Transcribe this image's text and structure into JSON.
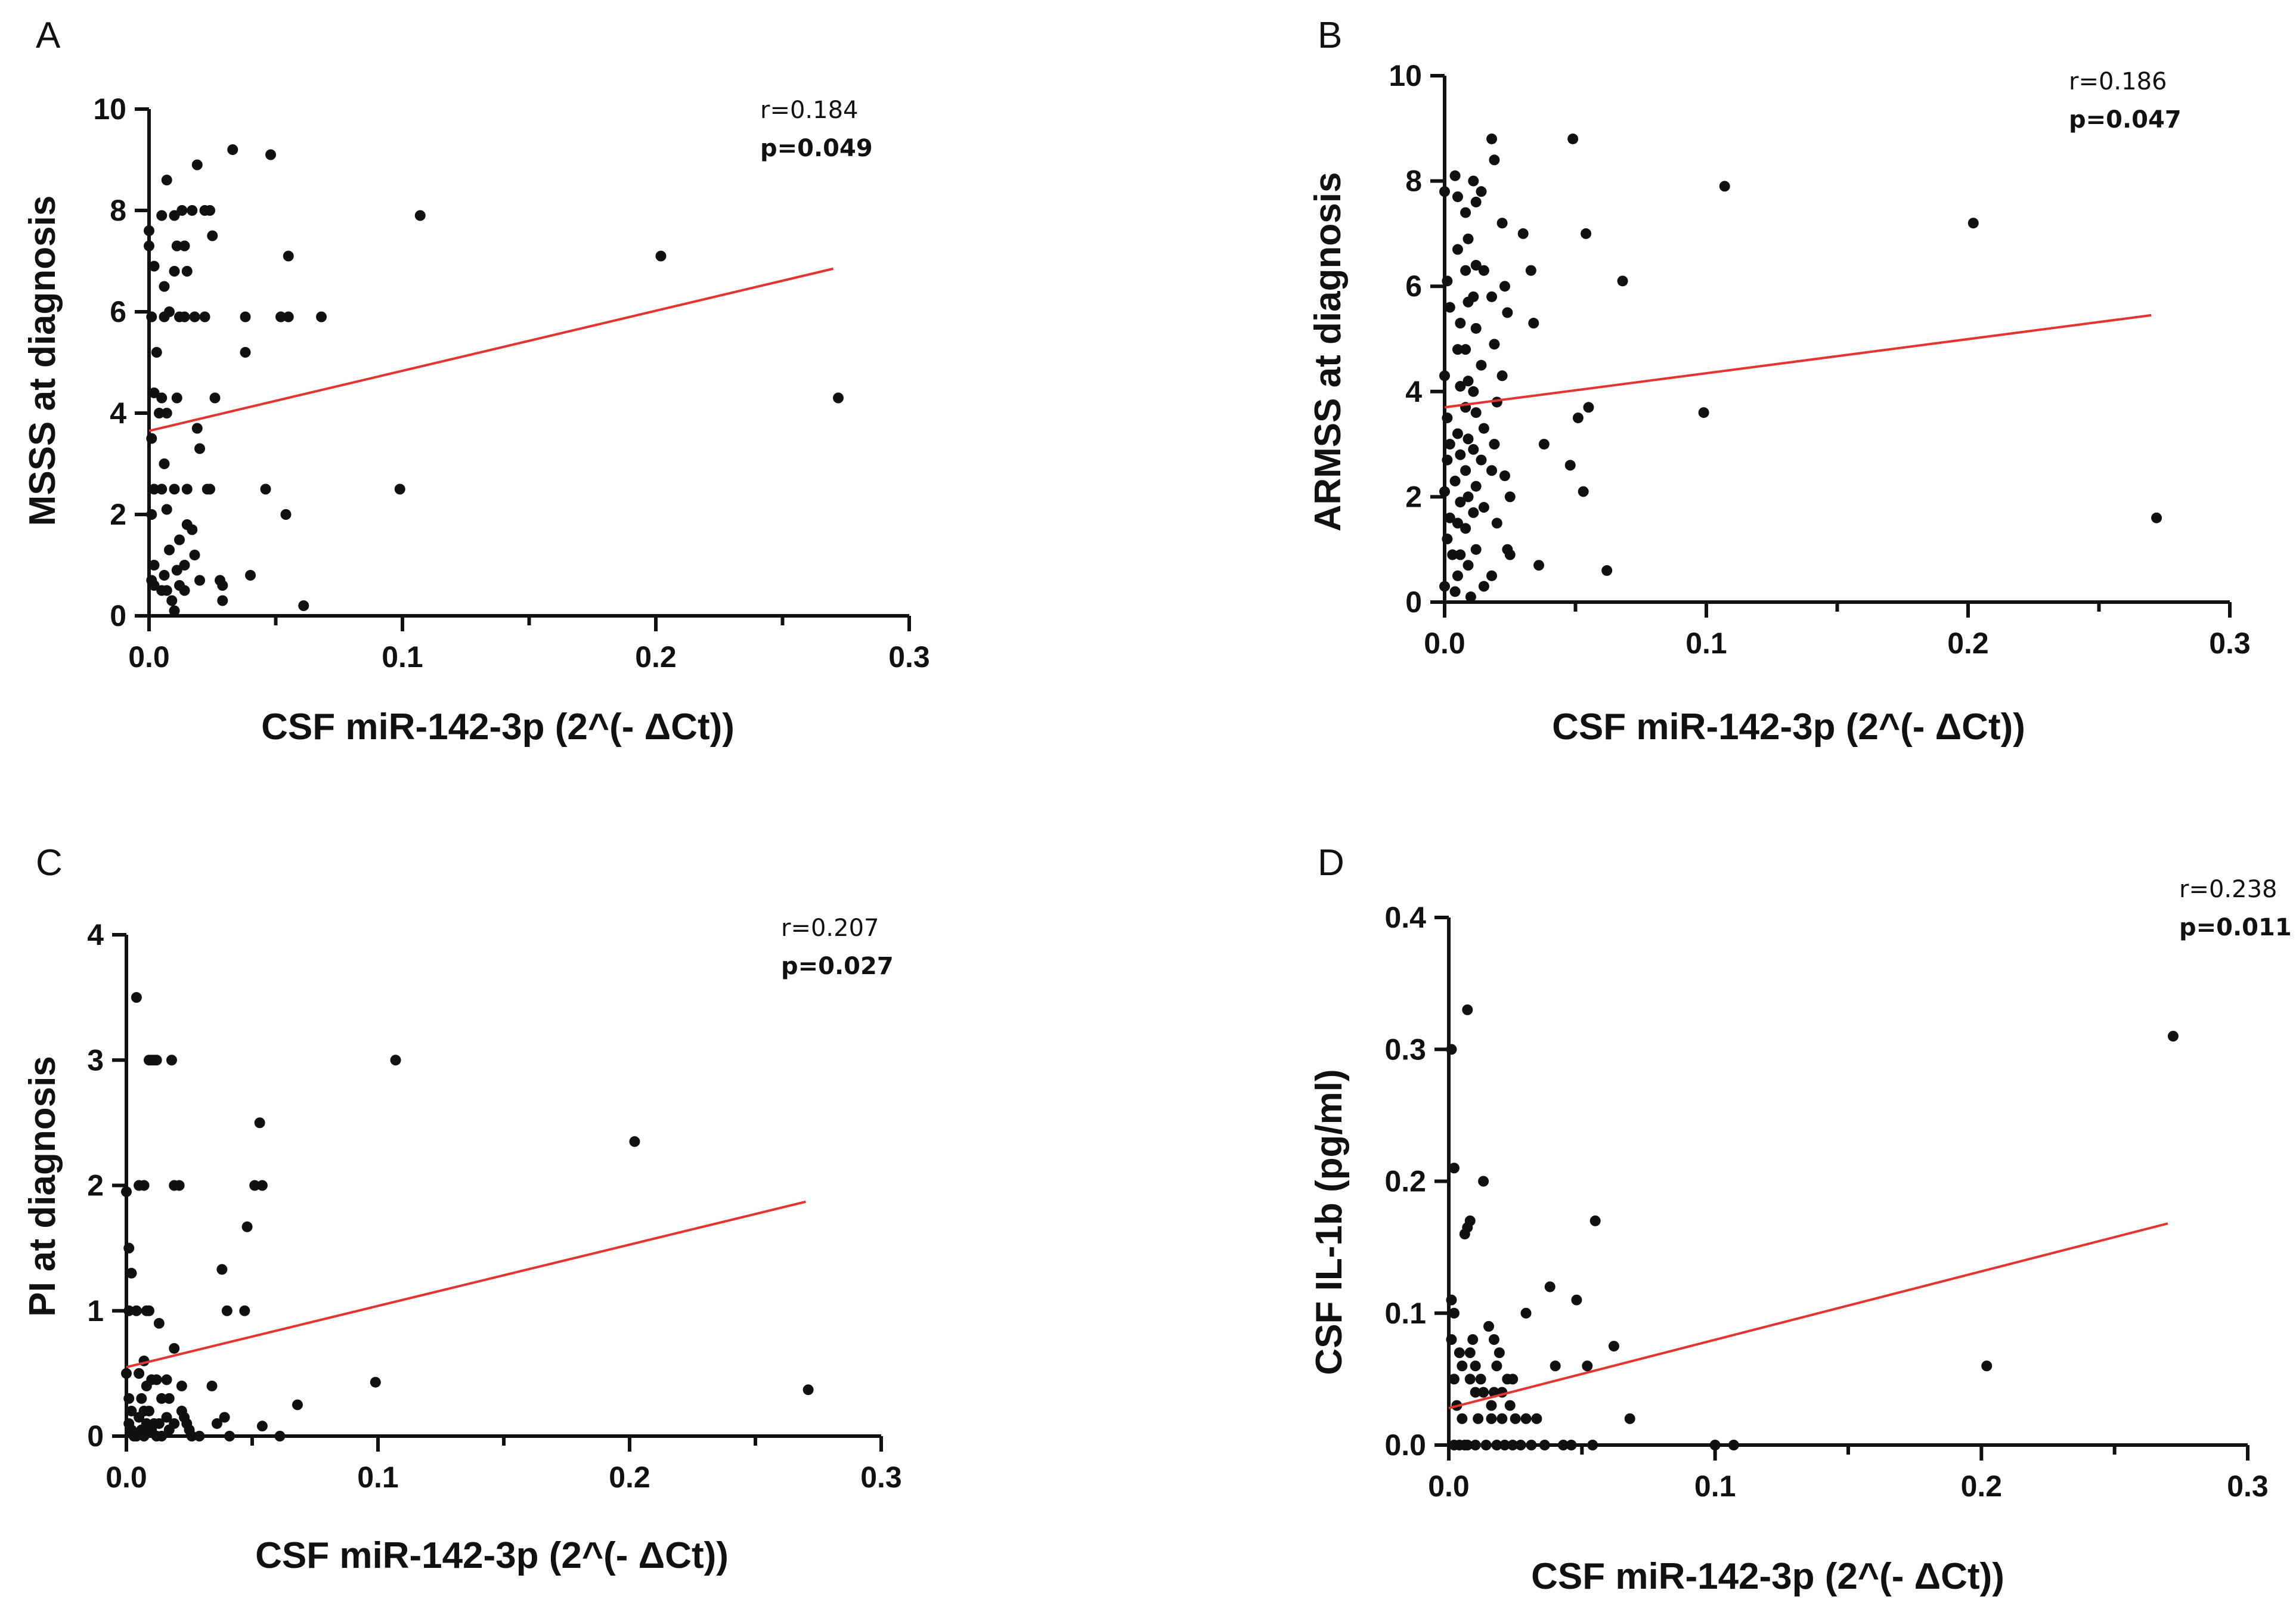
{
  "chart_data": [
    {
      "panel": "A",
      "type": "scatter",
      "xlabel": "CSF miR-142-3p (2^(- ΔCt))",
      "ylabel": "MSSS at diagnosis",
      "xlim": [
        0,
        0.3
      ],
      "ylim": [
        0,
        10
      ],
      "x_ticks": [
        0.0,
        0.1,
        0.2,
        0.3
      ],
      "x_tick_labels": [
        "0.0",
        "0.1",
        "0.2",
        "0.3"
      ],
      "y_ticks": [
        0,
        2,
        4,
        6,
        8,
        10
      ],
      "y_tick_labels": [
        "0",
        "2",
        "4",
        "6",
        "8",
        "10"
      ],
      "stats": {
        "r": "r=0.184",
        "p": "p=0.049"
      },
      "fit_line": {
        "x": [
          0.0,
          0.27
        ],
        "y": [
          3.65,
          6.85
        ]
      },
      "points": [
        [
          0.0,
          7.6
        ],
        [
          0.0,
          7.3
        ],
        [
          0.002,
          6.9
        ],
        [
          0.001,
          5.9
        ],
        [
          0.003,
          5.2
        ],
        [
          0.002,
          4.4
        ],
        [
          0.004,
          4.0
        ],
        [
          0.001,
          3.5
        ],
        [
          0.002,
          2.5
        ],
        [
          0.001,
          2.0
        ],
        [
          0.002,
          1.0
        ],
        [
          0.001,
          0.7
        ],
        [
          0.002,
          0.6
        ],
        [
          0.005,
          0.5
        ],
        [
          0.007,
          8.6
        ],
        [
          0.005,
          7.9
        ],
        [
          0.006,
          6.5
        ],
        [
          0.008,
          6.0
        ],
        [
          0.006,
          5.9
        ],
        [
          0.005,
          4.3
        ],
        [
          0.007,
          4.0
        ],
        [
          0.006,
          3.0
        ],
        [
          0.005,
          2.5
        ],
        [
          0.007,
          2.1
        ],
        [
          0.008,
          1.3
        ],
        [
          0.006,
          0.8
        ],
        [
          0.007,
          0.5
        ],
        [
          0.009,
          0.3
        ],
        [
          0.01,
          7.9
        ],
        [
          0.011,
          7.3
        ],
        [
          0.01,
          6.8
        ],
        [
          0.012,
          5.9
        ],
        [
          0.011,
          4.3
        ],
        [
          0.01,
          2.5
        ],
        [
          0.012,
          1.5
        ],
        [
          0.011,
          0.9
        ],
        [
          0.012,
          0.6
        ],
        [
          0.01,
          0.1
        ],
        [
          0.013,
          8.0
        ],
        [
          0.014,
          7.3
        ],
        [
          0.015,
          6.8
        ],
        [
          0.014,
          5.9
        ],
        [
          0.015,
          2.5
        ],
        [
          0.015,
          1.8
        ],
        [
          0.014,
          1.0
        ],
        [
          0.014,
          0.5
        ],
        [
          0.017,
          8.0
        ],
        [
          0.018,
          5.9
        ],
        [
          0.017,
          1.7
        ],
        [
          0.018,
          1.2
        ],
        [
          0.019,
          8.9
        ],
        [
          0.019,
          3.7
        ],
        [
          0.02,
          3.3
        ],
        [
          0.02,
          0.7
        ],
        [
          0.022,
          5.9
        ],
        [
          0.022,
          8.0
        ],
        [
          0.023,
          2.5
        ],
        [
          0.024,
          8.0
        ],
        [
          0.025,
          7.5
        ],
        [
          0.026,
          4.3
        ],
        [
          0.024,
          2.5
        ],
        [
          0.028,
          0.7
        ],
        [
          0.029,
          0.3
        ],
        [
          0.029,
          0.6
        ],
        [
          0.033,
          9.2
        ],
        [
          0.038,
          5.9
        ],
        [
          0.038,
          5.2
        ],
        [
          0.04,
          0.8
        ],
        [
          0.046,
          2.5
        ],
        [
          0.048,
          9.1
        ],
        [
          0.052,
          5.9
        ],
        [
          0.054,
          2.0
        ],
        [
          0.055,
          5.9
        ],
        [
          0.055,
          7.1
        ],
        [
          0.061,
          0.2
        ],
        [
          0.068,
          5.9
        ],
        [
          0.099,
          2.5
        ],
        [
          0.107,
          7.9
        ],
        [
          0.202,
          7.1
        ],
        [
          0.272,
          4.3
        ]
      ]
    },
    {
      "panel": "B",
      "type": "scatter",
      "xlabel": "CSF miR-142-3p (2^(- ΔCt))",
      "ylabel": "ARMSS at diagnosis",
      "xlim": [
        0,
        0.3
      ],
      "ylim": [
        0,
        10
      ],
      "x_ticks": [
        0.0,
        0.1,
        0.2,
        0.3
      ],
      "x_tick_labels": [
        "0.0",
        "0.1",
        "0.2",
        "0.3"
      ],
      "y_ticks": [
        0,
        2,
        4,
        6,
        8,
        10
      ],
      "y_tick_labels": [
        "0",
        "2",
        "4",
        "6",
        "8",
        "10"
      ],
      "stats": {
        "r": "r=0.186",
        "p": "p=0.047"
      },
      "fit_line": {
        "x": [
          0.0,
          0.27
        ],
        "y": [
          3.7,
          5.45
        ]
      },
      "points": [
        [
          0.0,
          7.8
        ],
        [
          0.001,
          6.1
        ],
        [
          0.002,
          5.6
        ],
        [
          0.0,
          4.3
        ],
        [
          0.001,
          3.5
        ],
        [
          0.002,
          3.0
        ],
        [
          0.001,
          2.7
        ],
        [
          0.0,
          2.1
        ],
        [
          0.002,
          1.6
        ],
        [
          0.001,
          1.2
        ],
        [
          0.003,
          0.9
        ],
        [
          0.0,
          0.3
        ],
        [
          0.004,
          0.2
        ],
        [
          0.004,
          8.1
        ],
        [
          0.005,
          7.7
        ],
        [
          0.005,
          6.7
        ],
        [
          0.006,
          5.3
        ],
        [
          0.005,
          4.8
        ],
        [
          0.006,
          4.1
        ],
        [
          0.005,
          3.2
        ],
        [
          0.006,
          2.8
        ],
        [
          0.004,
          2.3
        ],
        [
          0.006,
          1.9
        ],
        [
          0.005,
          1.5
        ],
        [
          0.006,
          0.9
        ],
        [
          0.005,
          0.5
        ],
        [
          0.008,
          7.4
        ],
        [
          0.009,
          6.9
        ],
        [
          0.008,
          6.3
        ],
        [
          0.009,
          5.7
        ],
        [
          0.008,
          4.8
        ],
        [
          0.009,
          4.2
        ],
        [
          0.008,
          3.7
        ],
        [
          0.009,
          3.1
        ],
        [
          0.008,
          2.5
        ],
        [
          0.009,
          2.0
        ],
        [
          0.008,
          1.4
        ],
        [
          0.009,
          0.7
        ],
        [
          0.01,
          0.1
        ],
        [
          0.011,
          8.0
        ],
        [
          0.012,
          7.6
        ],
        [
          0.012,
          6.4
        ],
        [
          0.011,
          5.8
        ],
        [
          0.012,
          5.2
        ],
        [
          0.011,
          4.0
        ],
        [
          0.012,
          3.6
        ],
        [
          0.011,
          2.9
        ],
        [
          0.012,
          2.2
        ],
        [
          0.011,
          1.7
        ],
        [
          0.012,
          1.0
        ],
        [
          0.014,
          7.8
        ],
        [
          0.015,
          6.3
        ],
        [
          0.014,
          4.5
        ],
        [
          0.015,
          3.3
        ],
        [
          0.014,
          2.7
        ],
        [
          0.015,
          1.8
        ],
        [
          0.015,
          0.3
        ],
        [
          0.018,
          8.8
        ],
        [
          0.019,
          8.4
        ],
        [
          0.018,
          5.8
        ],
        [
          0.019,
          4.9
        ],
        [
          0.02,
          3.8
        ],
        [
          0.019,
          3.0
        ],
        [
          0.018,
          2.5
        ],
        [
          0.02,
          1.5
        ],
        [
          0.018,
          0.5
        ],
        [
          0.022,
          7.2
        ],
        [
          0.023,
          6.0
        ],
        [
          0.024,
          5.5
        ],
        [
          0.022,
          4.3
        ],
        [
          0.023,
          2.4
        ],
        [
          0.024,
          1.0
        ],
        [
          0.025,
          2.0
        ],
        [
          0.025,
          0.9
        ],
        [
          0.03,
          7.0
        ],
        [
          0.033,
          6.3
        ],
        [
          0.034,
          5.3
        ],
        [
          0.036,
          0.7
        ],
        [
          0.038,
          3.0
        ],
        [
          0.049,
          8.8
        ],
        [
          0.048,
          2.6
        ],
        [
          0.051,
          3.5
        ],
        [
          0.053,
          2.1
        ],
        [
          0.054,
          7.0
        ],
        [
          0.055,
          3.7
        ],
        [
          0.062,
          0.6
        ],
        [
          0.068,
          6.1
        ],
        [
          0.099,
          3.6
        ],
        [
          0.107,
          7.9
        ],
        [
          0.202,
          7.2
        ],
        [
          0.272,
          1.6
        ]
      ]
    },
    {
      "panel": "C",
      "type": "scatter",
      "xlabel": "CSF miR-142-3p (2^(- ΔCt))",
      "ylabel": "PI at diagnosis",
      "xlim": [
        0,
        0.3
      ],
      "ylim": [
        0,
        4
      ],
      "x_ticks": [
        0.0,
        0.1,
        0.2,
        0.3
      ],
      "x_tick_labels": [
        "0.0",
        "0.1",
        "0.2",
        "0.3"
      ],
      "y_ticks": [
        0,
        1,
        2,
        3,
        4
      ],
      "y_tick_labels": [
        "0",
        "1",
        "2",
        "3",
        "4"
      ],
      "stats": {
        "r": "r=0.207",
        "p": "p=0.027"
      },
      "fit_line": {
        "x": [
          0.0,
          0.27
        ],
        "y": [
          0.55,
          1.87
        ]
      },
      "points": [
        [
          0.0,
          1.95
        ],
        [
          0.001,
          1.5
        ],
        [
          0.002,
          1.3
        ],
        [
          0.001,
          1.0
        ],
        [
          0.0,
          0.5
        ],
        [
          0.001,
          0.3
        ],
        [
          0.002,
          0.2
        ],
        [
          0.001,
          0.1
        ],
        [
          0.002,
          0.05
        ],
        [
          0.003,
          0.0
        ],
        [
          0.004,
          3.5
        ],
        [
          0.005,
          2.0
        ],
        [
          0.004,
          1.0
        ],
        [
          0.005,
          0.5
        ],
        [
          0.006,
          0.3
        ],
        [
          0.005,
          0.15
        ],
        [
          0.006,
          0.05
        ],
        [
          0.004,
          0.0
        ],
        [
          0.007,
          2.0
        ],
        [
          0.008,
          1.0
        ],
        [
          0.007,
          0.6
        ],
        [
          0.008,
          0.4
        ],
        [
          0.007,
          0.2
        ],
        [
          0.008,
          0.1
        ],
        [
          0.007,
          0.0
        ],
        [
          0.009,
          3.0
        ],
        [
          0.01,
          3.0
        ],
        [
          0.009,
          1.0
        ],
        [
          0.01,
          0.45
        ],
        [
          0.009,
          0.2
        ],
        [
          0.01,
          0.05
        ],
        [
          0.011,
          3.0
        ],
        [
          0.012,
          3.0
        ],
        [
          0.012,
          0.45
        ],
        [
          0.011,
          0.1
        ],
        [
          0.012,
          0.0
        ],
        [
          0.013,
          0.9
        ],
        [
          0.014,
          0.3
        ],
        [
          0.013,
          0.1
        ],
        [
          0.014,
          0.0
        ],
        [
          0.016,
          0.45
        ],
        [
          0.017,
          0.3
        ],
        [
          0.016,
          0.15
        ],
        [
          0.017,
          0.05
        ],
        [
          0.018,
          3.0
        ],
        [
          0.019,
          2.0
        ],
        [
          0.019,
          0.7
        ],
        [
          0.019,
          0.1
        ],
        [
          0.021,
          2.0
        ],
        [
          0.022,
          0.4
        ],
        [
          0.022,
          0.2
        ],
        [
          0.023,
          0.15
        ],
        [
          0.024,
          0.1
        ],
        [
          0.025,
          0.05
        ],
        [
          0.026,
          0.0
        ],
        [
          0.029,
          0.0
        ],
        [
          0.034,
          0.4
        ],
        [
          0.036,
          0.1
        ],
        [
          0.038,
          1.33
        ],
        [
          0.039,
          0.15
        ],
        [
          0.04,
          1.0
        ],
        [
          0.041,
          0.0
        ],
        [
          0.047,
          1.0
        ],
        [
          0.048,
          1.67
        ],
        [
          0.051,
          2.0
        ],
        [
          0.053,
          2.5
        ],
        [
          0.054,
          2.0
        ],
        [
          0.054,
          0.08
        ],
        [
          0.061,
          0.0
        ],
        [
          0.068,
          0.25
        ],
        [
          0.099,
          0.43
        ],
        [
          0.107,
          3.0
        ],
        [
          0.202,
          2.35
        ],
        [
          0.271,
          0.37
        ]
      ]
    },
    {
      "panel": "D",
      "type": "scatter",
      "xlabel": "CSF miR-142-3p (2^(- ΔCt))",
      "ylabel": "CSF IL-1b (pg/ml)",
      "xlim": [
        0,
        0.3
      ],
      "ylim": [
        0,
        0.4
      ],
      "x_ticks": [
        0.0,
        0.1,
        0.2,
        0.3
      ],
      "x_tick_labels": [
        "0.0",
        "0.1",
        "0.2",
        "0.3"
      ],
      "y_ticks": [
        0,
        0.1,
        0.2,
        0.3,
        0.4
      ],
      "y_tick_labels": [
        "0.0",
        "0.1",
        "0.2",
        "0.3",
        "0.4"
      ],
      "stats": {
        "r": "r=0.238",
        "p": "p=0.011"
      },
      "fit_line": {
        "x": [
          0.0,
          0.27
        ],
        "y": [
          0.028,
          0.168
        ]
      },
      "points": [
        [
          0.001,
          0.3
        ],
        [
          0.002,
          0.21
        ],
        [
          0.001,
          0.11
        ],
        [
          0.002,
          0.1
        ],
        [
          0.001,
          0.08
        ],
        [
          0.002,
          0.05
        ],
        [
          0.003,
          0.03
        ],
        [
          0.002,
          0.0
        ],
        [
          0.004,
          0.0
        ],
        [
          0.004,
          0.07
        ],
        [
          0.005,
          0.06
        ],
        [
          0.005,
          0.02
        ],
        [
          0.006,
          0.16
        ],
        [
          0.006,
          0.0
        ],
        [
          0.007,
          0.33
        ],
        [
          0.007,
          0.165
        ],
        [
          0.008,
          0.17
        ],
        [
          0.008,
          0.07
        ],
        [
          0.008,
          0.05
        ],
        [
          0.007,
          0.0
        ],
        [
          0.009,
          0.08
        ],
        [
          0.01,
          0.06
        ],
        [
          0.01,
          0.04
        ],
        [
          0.011,
          0.02
        ],
        [
          0.01,
          0.0
        ],
        [
          0.012,
          0.05
        ],
        [
          0.013,
          0.2
        ],
        [
          0.013,
          0.04
        ],
        [
          0.014,
          0.0
        ],
        [
          0.015,
          0.09
        ],
        [
          0.016,
          0.03
        ],
        [
          0.016,
          0.02
        ],
        [
          0.017,
          0.08
        ],
        [
          0.017,
          0.04
        ],
        [
          0.018,
          0.06
        ],
        [
          0.018,
          0.0
        ],
        [
          0.019,
          0.07
        ],
        [
          0.02,
          0.04
        ],
        [
          0.02,
          0.02
        ],
        [
          0.021,
          0.0
        ],
        [
          0.022,
          0.05
        ],
        [
          0.023,
          0.03
        ],
        [
          0.024,
          0.05
        ],
        [
          0.024,
          0.0
        ],
        [
          0.025,
          0.02
        ],
        [
          0.027,
          0.0
        ],
        [
          0.029,
          0.1
        ],
        [
          0.029,
          0.02
        ],
        [
          0.031,
          0.0
        ],
        [
          0.033,
          0.02
        ],
        [
          0.036,
          0.0
        ],
        [
          0.038,
          0.12
        ],
        [
          0.04,
          0.06
        ],
        [
          0.043,
          0.0
        ],
        [
          0.046,
          0.0
        ],
        [
          0.048,
          0.11
        ],
        [
          0.052,
          0.06
        ],
        [
          0.054,
          0.0
        ],
        [
          0.055,
          0.17
        ],
        [
          0.062,
          0.075
        ],
        [
          0.068,
          0.02
        ],
        [
          0.1,
          0.0
        ],
        [
          0.107,
          0.0
        ],
        [
          0.202,
          0.06
        ],
        [
          0.272,
          0.31
        ]
      ]
    }
  ]
}
